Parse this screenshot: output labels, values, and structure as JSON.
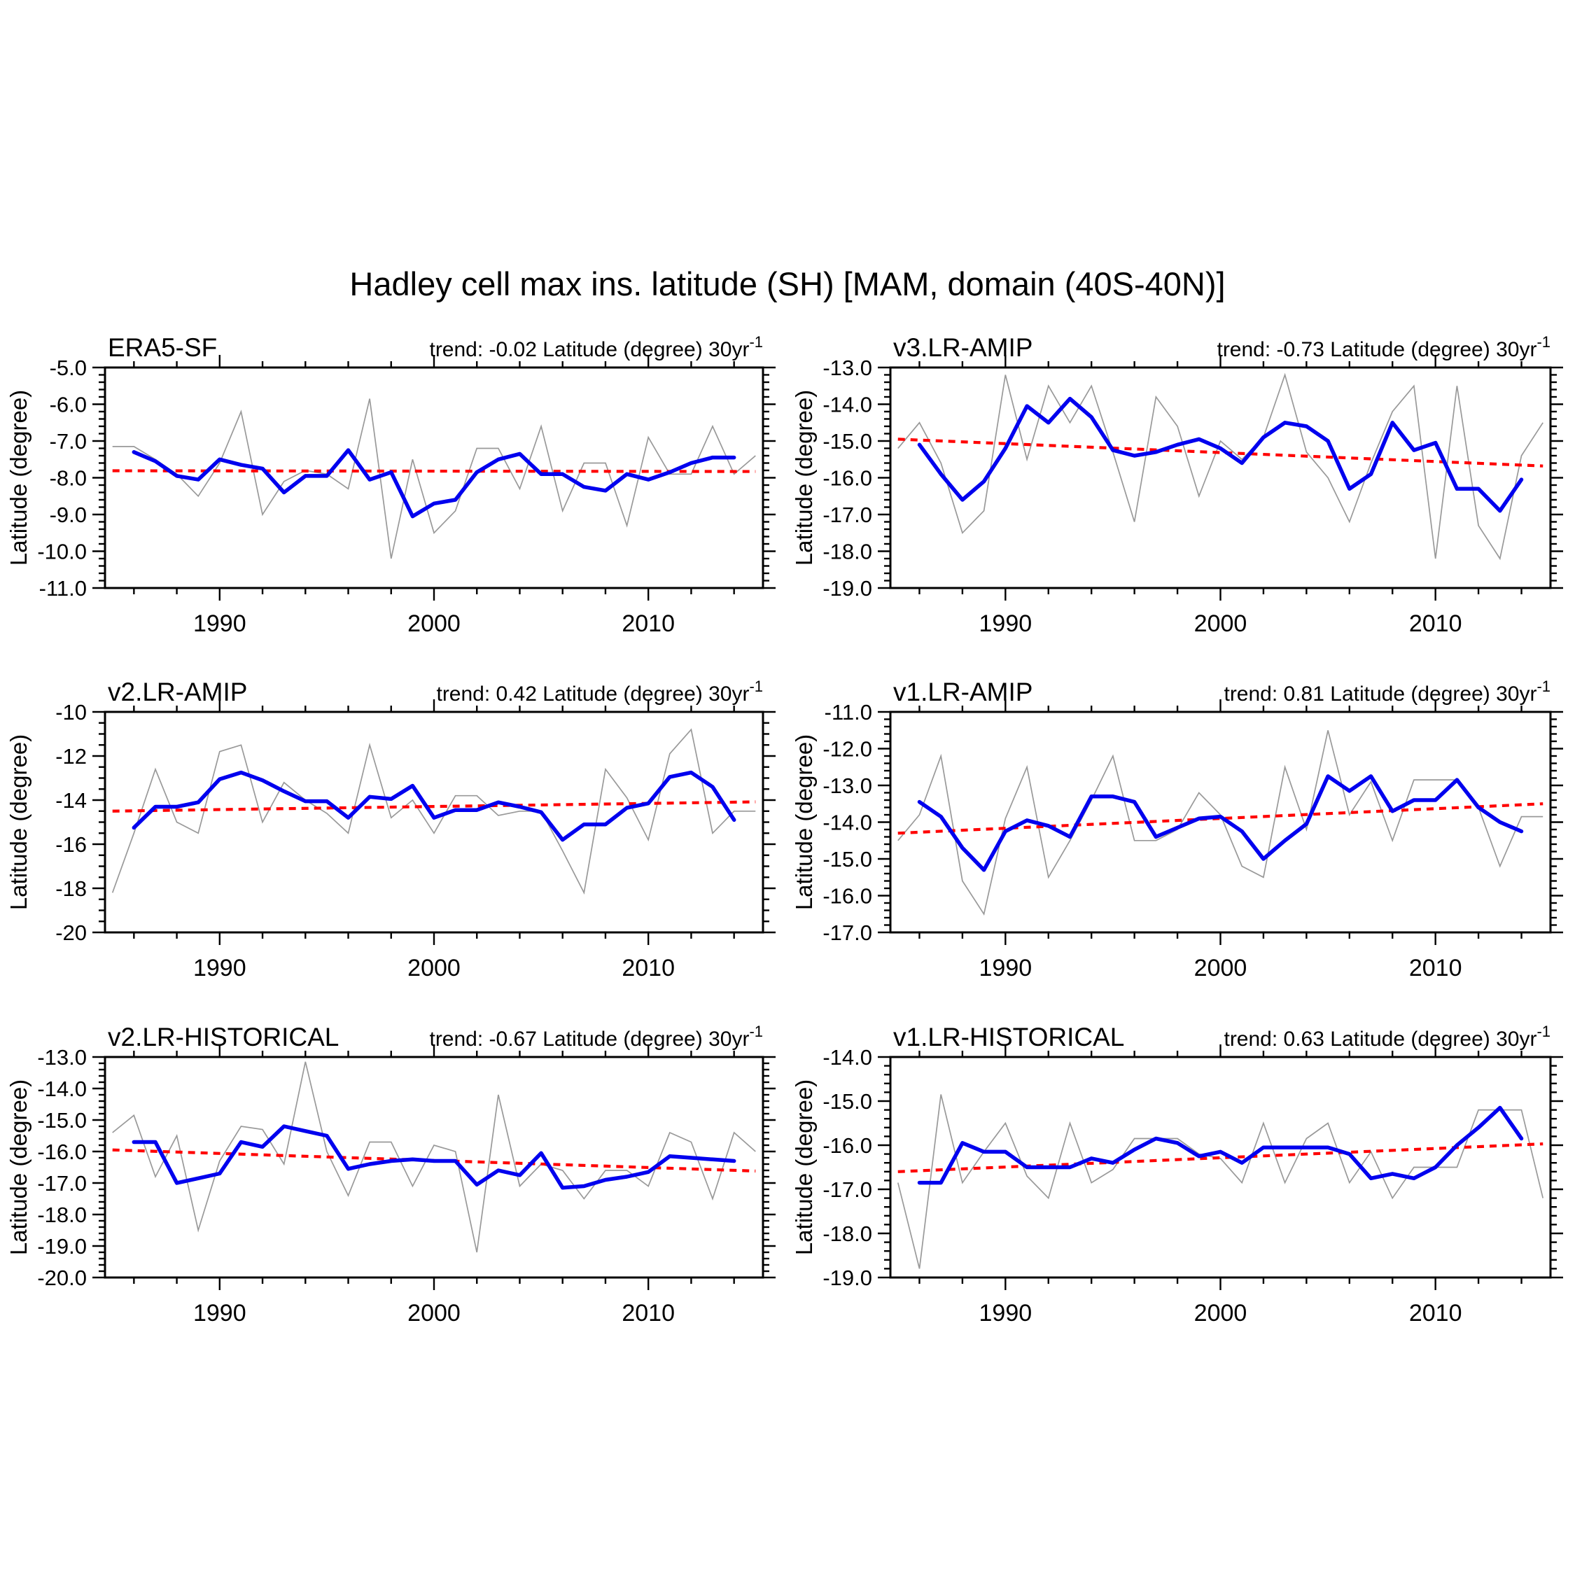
{
  "title": "Hadley cell max ins. latitude (SH) [MAM, domain (40S-40N)]",
  "colors": {
    "annual": "#999999",
    "smoothed": "#0000ee",
    "trend": "#ff0000",
    "axis": "#000000"
  },
  "chart_data": [
    {
      "type": "line",
      "title": "ERA5-SF",
      "trend_label": {
        "prefix": "trend: ",
        "value": "-0.02",
        "unit": " Latitude (degree) 30yr",
        "sup": "-1"
      },
      "ylabel": "Latitude (degree)",
      "ylim": [
        -11.0,
        -5.0
      ],
      "ytick_step": 1.0,
      "yminor_step": 0.2,
      "y_decimals": 1,
      "xlim": [
        1984.65,
        2015.35
      ],
      "x_major_ticks": [
        1990,
        2000,
        2010
      ],
      "x_minor_step": 2,
      "series": [
        {
          "name": "annual",
          "start_year": 1985,
          "values": [
            -7.15,
            -7.15,
            -7.5,
            -7.9,
            -8.5,
            -7.6,
            -6.2,
            -9.0,
            -8.1,
            -7.8,
            -7.9,
            -8.3,
            -5.85,
            -10.2,
            -7.5,
            -9.5,
            -8.9,
            -7.2,
            -7.2,
            -8.3,
            -6.6,
            -8.9,
            -7.6,
            -7.6,
            -9.3,
            -6.9,
            -7.9,
            -7.9,
            -6.6,
            -7.9,
            -7.4
          ]
        },
        {
          "name": "smoothed",
          "start_year": 1986,
          "values": [
            -7.3,
            -7.55,
            -7.95,
            -8.05,
            -7.5,
            -7.65,
            -7.75,
            -8.4,
            -7.95,
            -7.95,
            -7.25,
            -8.05,
            -7.85,
            -9.05,
            -8.7,
            -8.6,
            -7.85,
            -7.5,
            -7.35,
            -7.9,
            -7.9,
            -8.25,
            -8.35,
            -7.9,
            -8.05,
            -7.85,
            -7.6,
            -7.45,
            -7.45
          ]
        },
        {
          "name": "trend",
          "x": [
            1985,
            2015
          ],
          "values": [
            -7.81,
            -7.83
          ]
        }
      ]
    },
    {
      "type": "line",
      "title": "v3.LR-AMIP",
      "trend_label": {
        "prefix": "trend: ",
        "value": "-0.73",
        "unit": " Latitude (degree) 30yr",
        "sup": "-1"
      },
      "ylabel": "Latitude (degree)",
      "ylim": [
        -19.0,
        -13.0
      ],
      "ytick_step": 1.0,
      "yminor_step": 0.2,
      "y_decimals": 1,
      "xlim": [
        1984.65,
        2015.35
      ],
      "x_major_ticks": [
        1990,
        2000,
        2010
      ],
      "x_minor_step": 2,
      "series": [
        {
          "name": "annual",
          "start_year": 1985,
          "values": [
            -15.2,
            -14.5,
            -15.6,
            -17.5,
            -16.9,
            -13.2,
            -15.5,
            -13.5,
            -14.5,
            -13.5,
            -15.3,
            -17.2,
            -13.8,
            -14.6,
            -16.5,
            -15.0,
            -15.5,
            -14.9,
            -13.2,
            -15.3,
            -16.0,
            -17.2,
            -15.6,
            -14.2,
            -13.5,
            -18.2,
            -13.5,
            -17.3,
            -18.2,
            -15.4,
            -14.5
          ]
        },
        {
          "name": "smoothed",
          "start_year": 1986,
          "values": [
            -15.1,
            -15.9,
            -16.6,
            -16.1,
            -15.2,
            -14.05,
            -14.5,
            -13.85,
            -14.35,
            -15.25,
            -15.4,
            -15.3,
            -15.1,
            -14.95,
            -15.2,
            -15.6,
            -14.9,
            -14.5,
            -14.6,
            -15.0,
            -16.3,
            -15.9,
            -14.5,
            -15.25,
            -15.05,
            -16.3,
            -16.3,
            -16.9,
            -16.05
          ]
        },
        {
          "name": "trend",
          "x": [
            1985,
            2015
          ],
          "values": [
            -14.95,
            -15.68
          ]
        }
      ]
    },
    {
      "type": "line",
      "title": "v2.LR-AMIP",
      "trend_label": {
        "prefix": "trend: ",
        "value": "0.42",
        "unit": " Latitude (degree) 30yr",
        "sup": "-1"
      },
      "ylabel": "Latitude (degree)",
      "ylim": [
        -20.0,
        -10.0
      ],
      "ytick_step": 2.0,
      "yminor_step": 0.5,
      "y_decimals": 0,
      "xlim": [
        1984.65,
        2015.35
      ],
      "x_major_ticks": [
        1990,
        2000,
        2010
      ],
      "x_minor_step": 2,
      "series": [
        {
          "name": "annual",
          "start_year": 1985,
          "values": [
            -18.2,
            -15.5,
            -12.6,
            -15.0,
            -15.5,
            -11.8,
            -11.5,
            -15.0,
            -13.2,
            -14.0,
            -14.6,
            -15.5,
            -11.5,
            -14.8,
            -14.0,
            -15.5,
            -13.8,
            -13.8,
            -14.7,
            -14.5,
            -14.5,
            -16.3,
            -18.2,
            -12.6,
            -13.9,
            -15.8,
            -11.9,
            -10.8,
            -15.5,
            -14.5,
            -14.5
          ]
        },
        {
          "name": "smoothed",
          "start_year": 1986,
          "values": [
            -15.25,
            -14.3,
            -14.3,
            -14.1,
            -13.05,
            -12.75,
            -13.1,
            -13.6,
            -14.05,
            -14.05,
            -14.8,
            -13.85,
            -13.95,
            -13.35,
            -14.8,
            -14.45,
            -14.45,
            -14.1,
            -14.3,
            -14.55,
            -15.8,
            -15.1,
            -15.1,
            -14.35,
            -14.15,
            -12.95,
            -12.75,
            -13.4,
            -14.9
          ]
        },
        {
          "name": "trend",
          "x": [
            1985,
            2015
          ],
          "values": [
            -14.5,
            -14.08
          ]
        }
      ]
    },
    {
      "type": "line",
      "title": "v1.LR-AMIP",
      "trend_label": {
        "prefix": "trend: ",
        "value": "0.81",
        "unit": " Latitude (degree) 30yr",
        "sup": "-1"
      },
      "ylabel": "Latitude (degree)",
      "ylim": [
        -17.0,
        -11.0
      ],
      "ytick_step": 1.0,
      "yminor_step": 0.2,
      "y_decimals": 1,
      "xlim": [
        1984.65,
        2015.35
      ],
      "x_major_ticks": [
        1990,
        2000,
        2010
      ],
      "x_minor_step": 2,
      "series": [
        {
          "name": "annual",
          "start_year": 1985,
          "values": [
            -14.5,
            -13.8,
            -12.2,
            -15.6,
            -16.5,
            -13.9,
            -12.5,
            -15.5,
            -14.5,
            -13.4,
            -12.2,
            -14.5,
            -14.5,
            -14.2,
            -13.2,
            -13.8,
            -15.2,
            -15.5,
            -12.5,
            -14.2,
            -11.5,
            -13.8,
            -12.9,
            -14.5,
            -12.85,
            -12.85,
            -12.85,
            -13.6,
            -15.2,
            -13.85,
            -13.85
          ]
        },
        {
          "name": "smoothed",
          "start_year": 1986,
          "values": [
            -13.45,
            -13.85,
            -14.7,
            -15.3,
            -14.25,
            -13.95,
            -14.1,
            -14.4,
            -13.3,
            -13.3,
            -13.45,
            -14.4,
            -14.15,
            -13.9,
            -13.85,
            -14.25,
            -15.0,
            -14.5,
            -14.05,
            -12.75,
            -13.15,
            -12.75,
            -13.7,
            -13.4,
            -13.4,
            -12.85,
            -13.6,
            -14.0,
            -14.25
          ]
        },
        {
          "name": "trend",
          "x": [
            1985,
            2015
          ],
          "values": [
            -14.3,
            -13.5
          ]
        }
      ]
    },
    {
      "type": "line",
      "title": "v2.LR-HISTORICAL",
      "trend_label": {
        "prefix": "trend: ",
        "value": "-0.67",
        "unit": " Latitude (degree) 30yr",
        "sup": "-1"
      },
      "ylabel": "Latitude (degree)",
      "ylim": [
        -20.0,
        -13.0
      ],
      "ytick_step": 1.0,
      "yminor_step": 0.2,
      "y_decimals": 1,
      "xlim": [
        1984.65,
        2015.35
      ],
      "x_major_ticks": [
        1990,
        2000,
        2010
      ],
      "x_minor_step": 2,
      "series": [
        {
          "name": "annual",
          "start_year": 1985,
          "values": [
            -15.4,
            -14.85,
            -16.8,
            -15.5,
            -18.5,
            -16.3,
            -15.2,
            -15.3,
            -16.4,
            -13.15,
            -16.0,
            -17.4,
            -15.7,
            -15.7,
            -17.1,
            -15.8,
            -16.0,
            -19.2,
            -14.2,
            -17.1,
            -16.4,
            -16.6,
            -17.5,
            -16.6,
            -16.6,
            -17.1,
            -15.4,
            -15.7,
            -17.5,
            -15.4,
            -16.0
          ]
        },
        {
          "name": "smoothed",
          "start_year": 1986,
          "values": [
            -15.7,
            -15.7,
            -17.0,
            -16.85,
            -16.7,
            -15.7,
            -15.85,
            -15.2,
            -15.35,
            -15.5,
            -16.55,
            -16.4,
            -16.3,
            -16.25,
            -16.3,
            -16.3,
            -17.05,
            -16.6,
            -16.75,
            -16.05,
            -17.15,
            -17.1,
            -16.9,
            -16.8,
            -16.65,
            -16.15,
            -16.2,
            -16.25,
            -16.3
          ]
        },
        {
          "name": "trend",
          "x": [
            1985,
            2015
          ],
          "values": [
            -15.95,
            -16.62
          ]
        }
      ]
    },
    {
      "type": "line",
      "title": "v1.LR-HISTORICAL",
      "trend_label": {
        "prefix": "trend: ",
        "value": "0.63",
        "unit": " Latitude (degree) 30yr",
        "sup": "-1"
      },
      "ylabel": "Latitude (degree)",
      "ylim": [
        -19.0,
        -14.0
      ],
      "ytick_step": 1.0,
      "yminor_step": 0.2,
      "y_decimals": 1,
      "xlim": [
        1984.65,
        2015.35
      ],
      "x_major_ticks": [
        1990,
        2000,
        2010
      ],
      "x_minor_step": 2,
      "series": [
        {
          "name": "annual",
          "start_year": 1985,
          "values": [
            -16.85,
            -18.8,
            -14.85,
            -16.85,
            -16.15,
            -15.5,
            -16.7,
            -17.2,
            -15.5,
            -16.85,
            -16.55,
            -15.85,
            -15.85,
            -15.85,
            -16.2,
            -16.3,
            -16.85,
            -15.5,
            -16.85,
            -15.85,
            -15.5,
            -16.85,
            -16.15,
            -17.2,
            -16.5,
            -16.5,
            -16.5,
            -15.2,
            -15.2,
            -15.2,
            -17.2
          ]
        },
        {
          "name": "smoothed",
          "start_year": 1986,
          "values": [
            -16.85,
            -16.85,
            -15.95,
            -16.15,
            -16.15,
            -16.5,
            -16.5,
            -16.5,
            -16.3,
            -16.4,
            -16.1,
            -15.85,
            -15.95,
            -16.25,
            -16.15,
            -16.4,
            -16.05,
            -16.05,
            -16.05,
            -16.05,
            -16.2,
            -16.75,
            -16.65,
            -16.75,
            -16.5,
            -16.0,
            -15.6,
            -15.15,
            -15.85
          ]
        },
        {
          "name": "trend",
          "x": [
            1985,
            2015
          ],
          "values": [
            -16.6,
            -15.97
          ]
        }
      ]
    }
  ]
}
